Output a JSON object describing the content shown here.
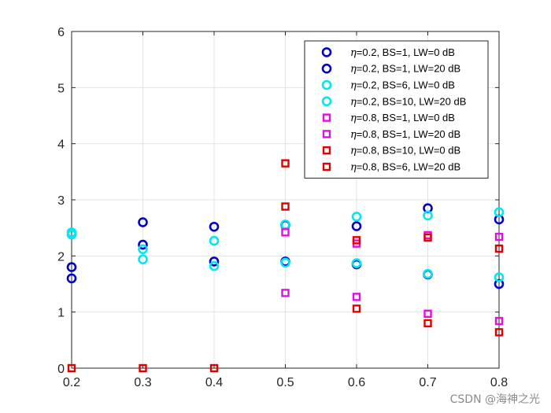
{
  "watermark": "CSDN @海神之光",
  "chart_data": {
    "type": "scatter",
    "title": "",
    "xlabel": "",
    "ylabel": "",
    "xlim": [
      0.2,
      0.8
    ],
    "ylim": [
      0,
      6
    ],
    "x_ticks": [
      "0.2",
      "0.3",
      "0.4",
      "0.5",
      "0.6",
      "0.7",
      "0.8"
    ],
    "y_ticks": [
      "0",
      "1",
      "2",
      "3",
      "4",
      "5",
      "6"
    ],
    "grid": true,
    "legend_position": "top-right",
    "series": [
      {
        "name": "η=0.2, BS=1, LW=0 dB",
        "eta": "η",
        "rest": "=0.2, BS=1, LW=0 dB",
        "marker": "circle",
        "color": "#0000c8",
        "points": [
          [
            0.2,
            1.6
          ],
          [
            0.3,
            2.2
          ],
          [
            0.4,
            1.9
          ],
          [
            0.5,
            1.9
          ],
          [
            0.6,
            1.85
          ],
          [
            0.7,
            1.67
          ],
          [
            0.8,
            1.5
          ]
        ]
      },
      {
        "name": "η=0.2, BS=1, LW=20 dB",
        "eta": "η",
        "rest": "=0.2, BS=1, LW=20 dB",
        "marker": "circle",
        "color": "#0000c8",
        "points": [
          [
            0.2,
            1.8
          ],
          [
            0.3,
            2.6
          ],
          [
            0.4,
            2.52
          ],
          [
            0.5,
            2.55
          ],
          [
            0.6,
            2.53
          ],
          [
            0.7,
            2.85
          ],
          [
            0.8,
            2.65
          ]
        ]
      },
      {
        "name": "η=0.2, BS=6, LW=0 dB",
        "eta": "η",
        "rest": "=0.2, BS=6, LW=0 dB",
        "marker": "circle",
        "color": "#00e8f0",
        "points": [
          [
            0.2,
            2.38
          ],
          [
            0.3,
            1.94
          ],
          [
            0.4,
            1.82
          ],
          [
            0.5,
            1.88
          ],
          [
            0.6,
            1.87
          ],
          [
            0.7,
            1.68
          ],
          [
            0.8,
            1.62
          ]
        ]
      },
      {
        "name": "η=0.2, BS=10, LW=20 dB",
        "eta": "η",
        "rest": "=0.2, BS=10, LW=20 dB",
        "marker": "circle",
        "color": "#00e8f0",
        "points": [
          [
            0.2,
            2.42
          ],
          [
            0.3,
            2.12
          ],
          [
            0.4,
            2.27
          ],
          [
            0.5,
            2.56
          ],
          [
            0.6,
            2.7
          ],
          [
            0.7,
            2.72
          ],
          [
            0.8,
            2.78
          ]
        ]
      },
      {
        "name": "η=0.8, BS=1, LW=0 dB",
        "eta": "η",
        "rest": "=0.8, BS=1, LW=0 dB",
        "marker": "square",
        "color": "#e010e0",
        "points": [
          [
            0.5,
            1.34
          ],
          [
            0.6,
            1.27
          ],
          [
            0.7,
            0.97
          ],
          [
            0.8,
            0.84
          ]
        ]
      },
      {
        "name": "η=0.8, BS=1, LW=20 dB",
        "eta": "η",
        "rest": "=0.8, BS=1, LW=20 dB",
        "marker": "square",
        "color": "#e010e0",
        "points": [
          [
            0.5,
            2.42
          ],
          [
            0.6,
            2.22
          ],
          [
            0.7,
            2.37
          ],
          [
            0.8,
            2.34
          ]
        ]
      },
      {
        "name": "η=0.8, BS=10, LW=0 dB",
        "eta": "η",
        "rest": "=0.8, BS=10, LW=0 dB",
        "marker": "square",
        "color": "#e00000",
        "points": [
          [
            0.2,
            0.0
          ],
          [
            0.3,
            0.0
          ],
          [
            0.4,
            0.0
          ],
          [
            0.5,
            2.88
          ],
          [
            0.6,
            1.06
          ],
          [
            0.7,
            0.8
          ],
          [
            0.8,
            0.64
          ]
        ]
      },
      {
        "name": "η=0.8, BS=6, LW=20 dB",
        "eta": "η",
        "rest": "=0.8, BS=6, LW=20 dB",
        "marker": "square",
        "color": "#e00000",
        "points": [
          [
            0.5,
            3.65
          ],
          [
            0.6,
            2.28
          ],
          [
            0.7,
            2.33
          ],
          [
            0.8,
            2.13
          ]
        ]
      }
    ]
  }
}
